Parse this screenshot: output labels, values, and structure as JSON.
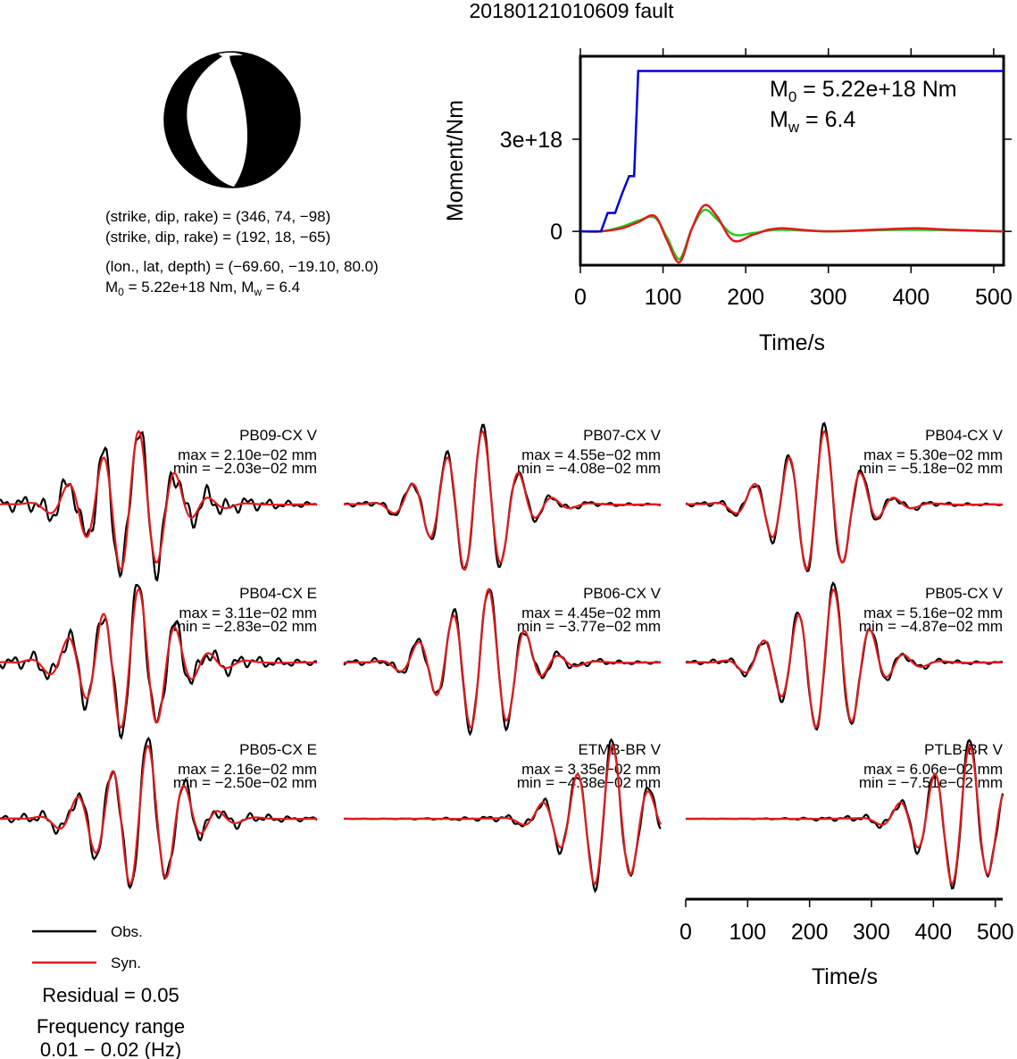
{
  "title": "20180121010609 fault",
  "mechanism": {
    "plane1": "(strike, dip, rake) = (346, 74, −98)",
    "plane2": "(strike, dip, rake) = (192, 18, −65)",
    "location": "(lon., lat, depth) = (−69.60, −19.10, 80.0)",
    "moment_line": {
      "m0_sym": "M",
      "m0_sub": "0",
      "m0_text": " = 5.22e+18 Nm, ",
      "mw_sym": "M",
      "mw_sub": "w",
      "mw_text": " = 6.4"
    }
  },
  "moment_plot": {
    "ylabel": "Moment/Nm",
    "xlabel": "Time/s",
    "m0_sym": "M",
    "m0_sub": "0",
    "m0_text": " = 5.22e+18 Nm",
    "mw_sym": "M",
    "mw_sub": "w",
    "mw_text": " = 6.4",
    "ytick_labels": [
      "0",
      "3e+18"
    ],
    "xtick_labels": [
      "0",
      "100",
      "200",
      "300",
      "400",
      "500"
    ]
  },
  "waveforms": {
    "xlabel": "Time/s",
    "xtick_labels": [
      "0",
      "100",
      "200",
      "300",
      "400",
      "500"
    ]
  },
  "legend": {
    "obs": "Obs.",
    "syn": "Syn."
  },
  "residual": "Residual = 0.05",
  "freq_title": "Frequency range",
  "freq_value": "0.01 − 0.02 (Hz)",
  "colors": {
    "obs": "#000000",
    "syn": "#e31a1c",
    "moment": "#0000dd",
    "green": "#22cc22",
    "beachball": "#000000"
  },
  "chart_data": [
    {
      "type": "line",
      "title": "",
      "xlabel": "Time/s",
      "ylabel": "Moment/Nm",
      "xlim": [
        0,
        512
      ],
      "ylim": [
        -1.1e+18,
        5.7e+18
      ],
      "yticks": [
        0,
        3e+18
      ],
      "xticks": [
        0,
        100,
        200,
        300,
        400,
        500
      ],
      "series": [
        {
          "name": "cumulative moment",
          "color": "#0000dd",
          "x": [
            0,
            25,
            33,
            42,
            50,
            59,
            65,
            70,
            80,
            512
          ],
          "y": [
            0,
            0,
            6e+17,
            6e+17,
            1.2e+18,
            1.8e+18,
            1.8e+18,
            5.22e+18,
            5.22e+18,
            5.22e+18
          ]
        },
        {
          "name": "moment rate",
          "color": "#e31a1c",
          "x": [
            0,
            25,
            50,
            70,
            90,
            105,
            120,
            135,
            150,
            165,
            185,
            210,
            240,
            300,
            400,
            450,
            512
          ],
          "y": [
            0,
            0,
            1e+17,
            3e+17,
            5e+17,
            -3e+17,
            -1e+18,
            1e+17,
            8.5e+17,
            5e+17,
            -3e+17,
            -1e+17,
            1e+17,
            0,
            1e+17,
            5e+16,
            0
          ]
        },
        {
          "name": "moment rate (alt)",
          "color": "#22cc22",
          "x": [
            0,
            25,
            50,
            70,
            90,
            105,
            120,
            135,
            150,
            165,
            185,
            210,
            240,
            300,
            400,
            512
          ],
          "y": [
            0,
            0,
            1.5e+17,
            3.5e+17,
            4.5e+17,
            -2e+17,
            -9e+17,
            1e+17,
            7e+17,
            4e+17,
            -1e+17,
            -5e+16,
            5e+16,
            0,
            5e+16,
            0
          ]
        }
      ]
    },
    {
      "type": "line",
      "title": "waveform fits",
      "xlabel": "Time/s",
      "xlim": [
        0,
        512
      ],
      "xticks": [
        0,
        100,
        200,
        300,
        400,
        500
      ],
      "traces": [
        {
          "station": "PB09-CX V",
          "max": "max = 2.10e−02 mm",
          "min": "min = −2.03e−02 mm",
          "center": 210,
          "period": 58,
          "env": 60,
          "amp_max": 0.021,
          "amp_min": -0.0203,
          "obs_noise": 0.25
        },
        {
          "station": "PB07-CX V",
          "max": "max = 4.55e−02 mm",
          "min": "min = −4.08e−02 mm",
          "center": 210,
          "period": 58,
          "env": 60,
          "amp_max": 0.0455,
          "amp_min": -0.0408,
          "obs_noise": 0.08
        },
        {
          "station": "PB04-CX V",
          "max": "max = 5.30e−02 mm",
          "min": "min = −5.18e−02 mm",
          "center": 210,
          "period": 58,
          "env": 60,
          "amp_max": 0.053,
          "amp_min": -0.0518,
          "obs_noise": 0.08
        },
        {
          "station": "PB04-CX E",
          "max": "max = 3.11e−02 mm",
          "min": "min = −2.83e−02 mm",
          "center": 210,
          "period": 58,
          "env": 65,
          "amp_max": 0.0311,
          "amp_min": -0.0283,
          "obs_noise": 0.2
        },
        {
          "station": "PB06-CX V",
          "max": "max = 4.45e−02 mm",
          "min": "min = −3.77e−02 mm",
          "center": 220,
          "period": 58,
          "env": 60,
          "amp_max": 0.0445,
          "amp_min": -0.0377,
          "obs_noise": 0.1
        },
        {
          "station": "PB05-CX V",
          "max": "max = 5.16e−02 mm",
          "min": "min = −4.87e−02 mm",
          "center": 225,
          "period": 58,
          "env": 62,
          "amp_max": 0.0516,
          "amp_min": -0.0487,
          "obs_noise": 0.08
        },
        {
          "station": "PB05-CX E",
          "max": "max = 2.16e−02 mm",
          "min": "min = −2.50e−02 mm",
          "center": 225,
          "period": 58,
          "env": 62,
          "amp_max": 0.0216,
          "amp_min": -0.025,
          "obs_noise": 0.15
        },
        {
          "station": "ETMB-BR V",
          "max": "max = 3.35e−02 mm",
          "min": "min = −4.38e−02 mm",
          "center": 420,
          "period": 58,
          "env": 55,
          "amp_max": 0.0335,
          "amp_min": -0.0438,
          "obs_noise": 0.1
        },
        {
          "station": "PTLB-BR V",
          "max": "max = 6.06e−02 mm",
          "min": "min = −7.51e−02 mm",
          "center": 445,
          "period": 58,
          "env": 55,
          "amp_max": 0.0606,
          "amp_min": -0.0751,
          "obs_noise": 0.1
        }
      ]
    }
  ]
}
